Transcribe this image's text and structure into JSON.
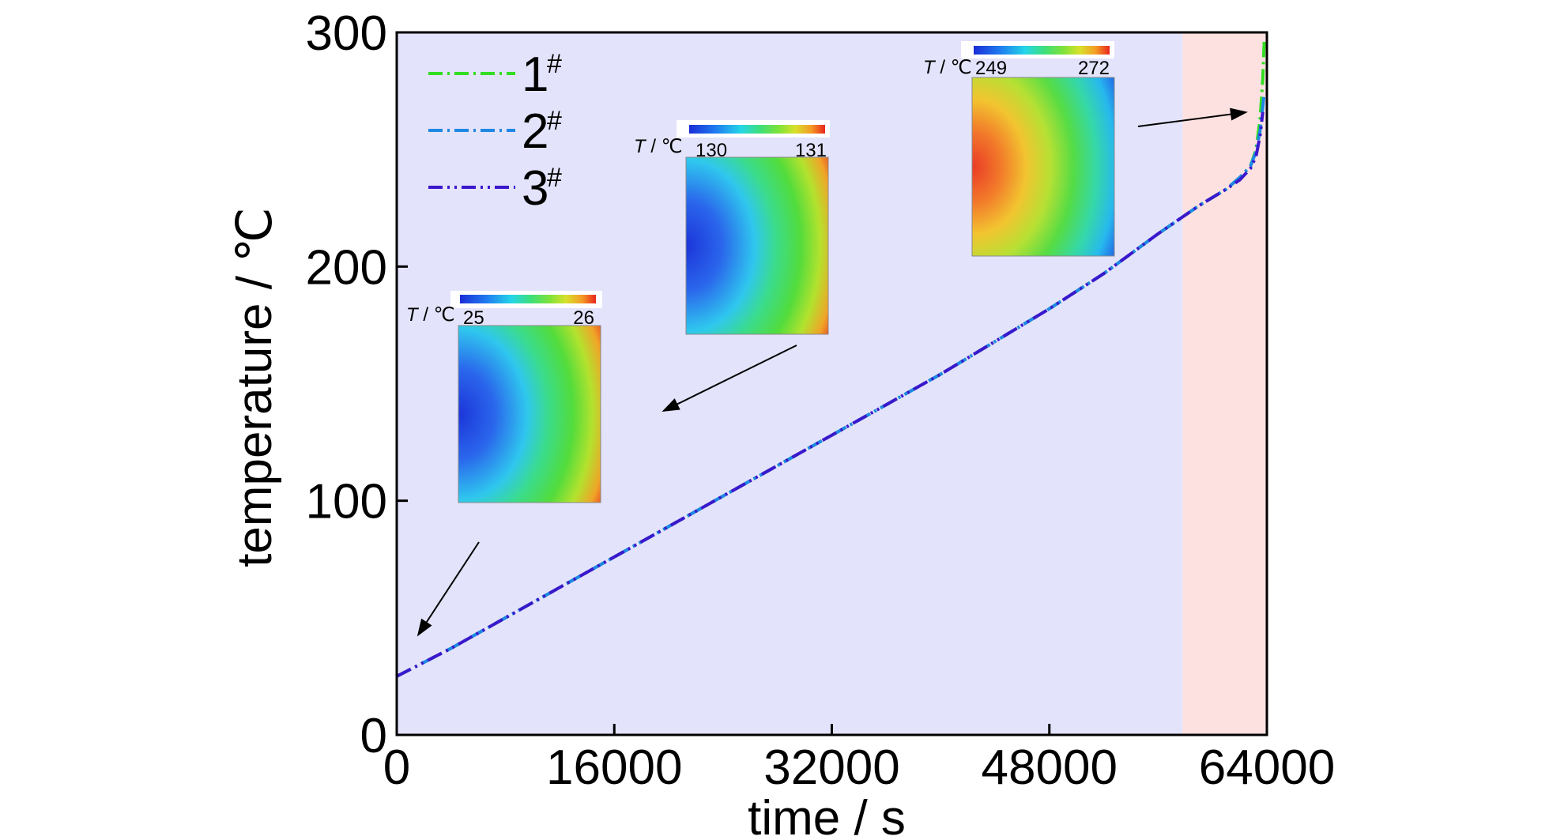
{
  "chart_data": {
    "type": "line",
    "xlabel": "time / s",
    "ylabel": "temperature / ℃",
    "xlim": [
      0,
      64000
    ],
    "ylim": [
      0,
      300
    ],
    "xticks": [
      0,
      16000,
      32000,
      48000,
      64000
    ],
    "yticks": [
      0,
      100,
      200,
      300
    ],
    "xtick_labels": [
      "0",
      "16000",
      "32000",
      "48000",
      "64000"
    ],
    "ytick_labels": [
      "0",
      "100",
      "200",
      "300"
    ],
    "grid": false,
    "legend_position": "top-left",
    "background_regions": [
      {
        "x_range": [
          0,
          57800
        ],
        "color": "#e3e3fb"
      },
      {
        "x_range": [
          57800,
          64000
        ],
        "color": "#fde1e1"
      }
    ],
    "series": [
      {
        "name": "1",
        "name_superscript": "#",
        "color": "#33dd22",
        "dash": "dashdot",
        "x": [
          0,
          4000,
          8000,
          12000,
          16000,
          20000,
          24000,
          28000,
          32000,
          36000,
          40000,
          44000,
          48000,
          52000,
          56000,
          59000,
          61000,
          62000,
          62800,
          63200,
          63500,
          63700,
          63800
        ],
        "y": [
          25,
          37,
          50,
          63,
          76,
          89,
          102,
          115,
          128,
          141,
          154,
          168,
          182,
          197,
          214,
          226,
          233,
          238,
          243,
          250,
          263,
          280,
          296
        ]
      },
      {
        "name": "2",
        "name_superscript": "#",
        "color": "#1e88e5",
        "dash": "dashdot",
        "x": [
          0,
          4000,
          8000,
          12000,
          16000,
          20000,
          24000,
          28000,
          32000,
          36000,
          40000,
          44000,
          48000,
          52000,
          56000,
          59000,
          61000,
          62000,
          62800,
          63200,
          63500,
          63700,
          63800
        ],
        "y": [
          25,
          37,
          50,
          63,
          76,
          89,
          102,
          115,
          128,
          141,
          154,
          168,
          182,
          197,
          214,
          226,
          233,
          238,
          243,
          249,
          258,
          268,
          274
        ]
      },
      {
        "name": "3",
        "name_superscript": "#",
        "color": "#3a18cc",
        "dash": "dashdotdot",
        "x": [
          0,
          4000,
          8000,
          12000,
          16000,
          20000,
          24000,
          28000,
          32000,
          36000,
          40000,
          44000,
          48000,
          52000,
          56000,
          59000,
          61000,
          62000,
          62800,
          63200,
          63500,
          63700
        ],
        "y": [
          25,
          37,
          50,
          63,
          76,
          89,
          102,
          115,
          128,
          141,
          154,
          168,
          182,
          197,
          214,
          226,
          233,
          237,
          242,
          247,
          256,
          266
        ]
      }
    ],
    "insets": [
      {
        "unit_italic": "T",
        "unit_rest": " / ℃",
        "min_label": "25",
        "max_label": "26",
        "arrow_to": {
          "x": 1500,
          "y": 42
        }
      },
      {
        "unit_italic": "T",
        "unit_rest": " / ℃",
        "min_label": "130",
        "max_label": "131",
        "arrow_to": {
          "x": 19500,
          "y": 138
        }
      },
      {
        "unit_italic": "T",
        "unit_rest": " / ℃",
        "min_label": "249",
        "max_label": "272",
        "arrow_to": {
          "x": 62600,
          "y": 266
        }
      }
    ],
    "colormap": [
      "#1a2dd8",
      "#1f7ef0",
      "#25d6e8",
      "#3ddf7a",
      "#7fe23a",
      "#d8e12c",
      "#f59a25",
      "#e8261c"
    ]
  }
}
